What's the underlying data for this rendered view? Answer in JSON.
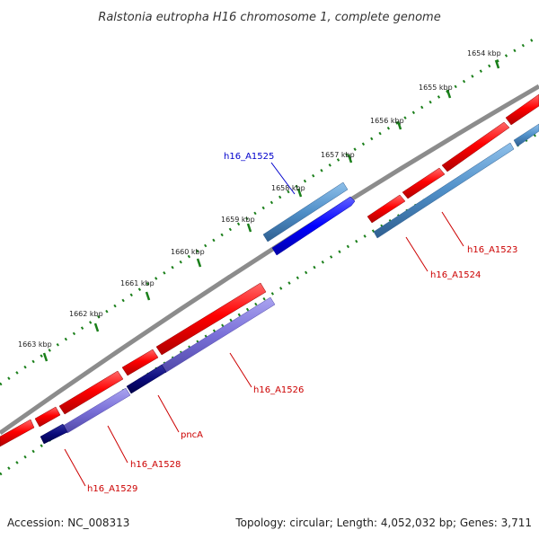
{
  "title": "Ralstonia eutropha H16 chromosome 1, complete genome",
  "footer": {
    "accession": "Accession: NC_008313",
    "summary": "Topology: circular; Length: 4,052,032 bp; Genes: 3,711"
  },
  "scale": {
    "ticks": [
      "1654 kbp",
      "1655 kbp",
      "1656 kbp",
      "1657 kbp",
      "1658 kbp",
      "1659 kbp",
      "1660 kbp",
      "1661 kbp",
      "1662 kbp",
      "1663 kbp"
    ]
  },
  "colors": {
    "backbone": "#7f7f7f",
    "tick": "#1a7f1a",
    "gene_red": "#ff0000",
    "gene_blue_bright": "#0000ff",
    "gene_steel": "#4f8fc8",
    "gene_purple": "#7a70d8",
    "gene_navy": "#0a0a7a",
    "label_red": "#cc0000",
    "label_blue": "#0000cc"
  },
  "genes": [
    {
      "id": "h16_A1523",
      "label": "h16_A1523",
      "color": "red"
    },
    {
      "id": "h16_A1524",
      "label": "h16_A1524",
      "color": "red"
    },
    {
      "id": "h16_A1525",
      "label": "h16_A1525",
      "color": "blue"
    },
    {
      "id": "h16_A1526",
      "label": "h16_A1526",
      "color": "red"
    },
    {
      "id": "pncA",
      "label": "pncA",
      "color": "red"
    },
    {
      "id": "h16_A1528",
      "label": "h16_A1528",
      "color": "red"
    },
    {
      "id": "h16_A1529",
      "label": "h16_A1529",
      "color": "red"
    }
  ]
}
